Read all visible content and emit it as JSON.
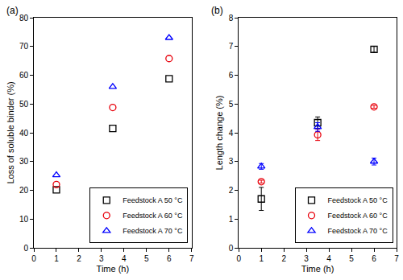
{
  "chart_data": [
    {
      "type": "scatter",
      "title": "(a)",
      "x_label": "Time (h)",
      "y_label": "Loss of soluble binder (%)",
      "xlim": [
        0,
        7
      ],
      "xticks": [
        0,
        1,
        2,
        3,
        4,
        5,
        6,
        7
      ],
      "ylim": [
        0,
        80
      ],
      "yticks": [
        0,
        10,
        20,
        30,
        40,
        50,
        60,
        70,
        80
      ],
      "legend": "lower right",
      "series": [
        {
          "name": "Feedstock A 50 °C",
          "color": "#000000",
          "marker": "square-open",
          "x": [
            1,
            3.5,
            6
          ],
          "values": [
            20.2,
            41.5,
            58.8
          ]
        },
        {
          "name": "Feedstock A 60 °C",
          "color": "#e8000b",
          "marker": "circle-open",
          "x": [
            1,
            3.5,
            6
          ],
          "values": [
            22,
            48.8,
            65.8
          ]
        },
        {
          "name": "Feedstock A 70 °C",
          "color": "#0000ff",
          "marker": "triangle-up-open",
          "x": [
            1,
            3.5,
            6
          ],
          "values": [
            25.3,
            56,
            73
          ]
        }
      ]
    },
    {
      "type": "scatter",
      "title": "(b)",
      "x_label": "Time (h)",
      "y_label": "Length change (%)",
      "xlim": [
        0,
        7
      ],
      "xticks": [
        0,
        1,
        2,
        3,
        4,
        5,
        6,
        7
      ],
      "ylim": [
        0,
        8
      ],
      "yticks": [
        0,
        1,
        2,
        3,
        4,
        5,
        6,
        7,
        8
      ],
      "legend": "lower right",
      "series": [
        {
          "name": "Feedstock A 50 °C",
          "color": "#000000",
          "marker": "square-open",
          "x": [
            1,
            3.5,
            6
          ],
          "values": [
            1.7,
            4.35,
            6.9
          ],
          "errors": [
            0.4,
            0.2,
            0.1
          ]
        },
        {
          "name": "Feedstock A 60 °C",
          "color": "#e8000b",
          "marker": "circle-open",
          "x": [
            1,
            3.5,
            6
          ],
          "values": [
            2.3,
            3.93,
            4.9
          ],
          "errors": [
            0.05,
            0.2,
            0.05
          ]
        },
        {
          "name": "Feedstock A 70 °C",
          "color": "#0000ff",
          "marker": "triangle-up-open",
          "x": [
            1,
            3.5,
            6
          ],
          "values": [
            2.83,
            4.2,
            3.0
          ],
          "errors": [
            0.1,
            0.15,
            0.12
          ]
        }
      ]
    }
  ]
}
